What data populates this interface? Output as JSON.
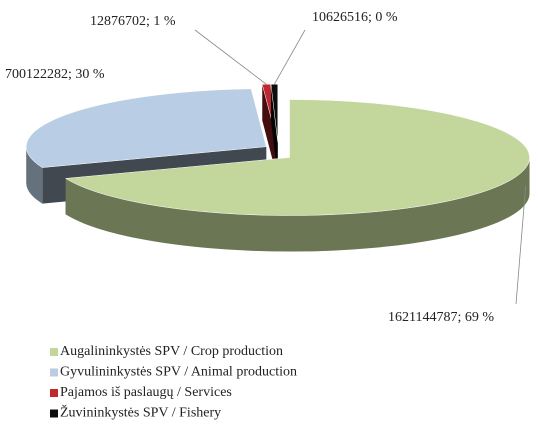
{
  "chart_data": {
    "type": "pie",
    "categories": [
      "Augalininkystės SPV / Crop production",
      "Gyvulininkystės SPV / Animal production",
      "Pajamos iš paslaugų / Services",
      "Žuvininkystės SPV / Fishery"
    ],
    "values": [
      1621144787,
      700122282,
      12876702,
      10626516
    ],
    "value_labels": [
      "1621144787; 69 %",
      "700122282; 30 %",
      "12876702; 1 %",
      "10626516; 0 %"
    ],
    "colors": [
      "#c3d69b",
      "#b9cde5",
      "#c0282d",
      "#0d0d0d"
    ],
    "legend": "bottom-left"
  }
}
